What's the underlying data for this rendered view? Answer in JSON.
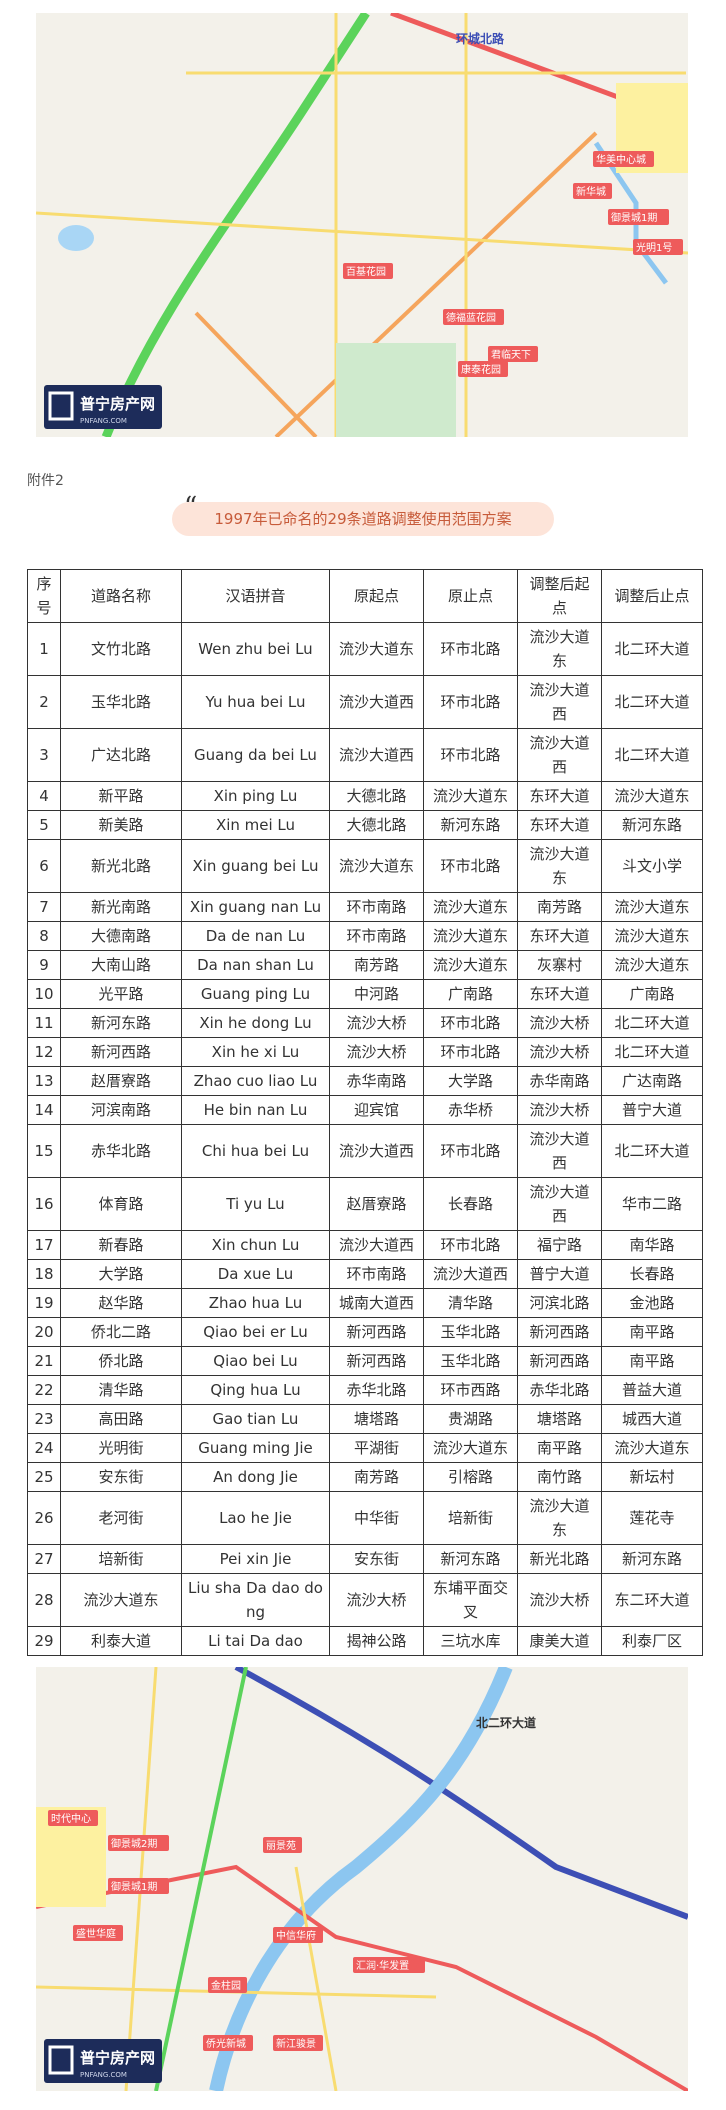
{
  "maps": [
    {
      "logo": "普宁房产网",
      "logo_sub": "PNFANG.COM",
      "labels": [
        "环城北路",
        "华美中心城",
        "新华城",
        "御景城1期",
        "光明1号",
        "百基花园",
        "德福蓝花园",
        "君临天下",
        "康泰花园"
      ]
    },
    {
      "logo": "普宁房产网",
      "logo_sub": "PNFANG.COM",
      "labels": [
        "北二环大道",
        "时代中心",
        "御景城2期",
        "御景城1期",
        "盛世华庭",
        "中信华府",
        "汇润·华发置",
        "金柱园",
        "侨光新城",
        "新江骏景",
        "丽景苑"
      ]
    }
  ],
  "attachment": "附件2",
  "title": "1997年已命名的29条道路调整使用范围方案",
  "table": {
    "header": [
      "序号",
      "道路名称",
      "汉语拼音",
      "原起点",
      "原止点",
      "调整后起点",
      "调整后止点"
    ],
    "rows": [
      [
        "1",
        "文竹北路",
        "Wen zhu bei Lu",
        "流沙大道东",
        "环市北路",
        "流沙大道东",
        "北二环大道"
      ],
      [
        "2",
        "玉华北路",
        "Yu hua bei Lu",
        "流沙大道西",
        "环市北路",
        "流沙大道西",
        "北二环大道"
      ],
      [
        "3",
        "广达北路",
        "Guang da bei Lu",
        "流沙大道西",
        "环市北路",
        "流沙大道西",
        "北二环大道"
      ],
      [
        "4",
        "新平路",
        "Xin ping Lu",
        "大德北路",
        "流沙大道东",
        "东环大道",
        "流沙大道东"
      ],
      [
        "5",
        "新美路",
        "Xin mei Lu",
        "大德北路",
        "新河东路",
        "东环大道",
        "新河东路"
      ],
      [
        "6",
        "新光北路",
        "Xin guang bei Lu",
        "流沙大道东",
        "环市北路",
        "流沙大道东",
        "斗文小学"
      ],
      [
        "7",
        "新光南路",
        "Xin guang nan Lu",
        "环市南路",
        "流沙大道东",
        "南芳路",
        "流沙大道东"
      ],
      [
        "8",
        "大德南路",
        "Da de nan Lu",
        "环市南路",
        "流沙大道东",
        "东环大道",
        "流沙大道东"
      ],
      [
        "9",
        "大南山路",
        "Da nan shan Lu",
        "南芳路",
        "流沙大道东",
        "灰寨村",
        "流沙大道东"
      ],
      [
        "10",
        "光平路",
        "Guang ping Lu",
        "中河路",
        "广南路",
        "东环大道",
        "广南路"
      ],
      [
        "11",
        "新河东路",
        "Xin he dong Lu",
        "流沙大桥",
        "环市北路",
        "流沙大桥",
        "北二环大道"
      ],
      [
        "12",
        "新河西路",
        "Xin he xi Lu",
        "流沙大桥",
        "环市北路",
        "流沙大桥",
        "北二环大道"
      ],
      [
        "13",
        "赵厝寮路",
        "Zhao cuo liao Lu",
        "赤华南路",
        "大学路",
        "赤华南路",
        "广达南路"
      ],
      [
        "14",
        "河滨南路",
        "He bin nan Lu",
        "迎宾馆",
        "赤华桥",
        "流沙大桥",
        "普宁大道"
      ],
      [
        "15",
        "赤华北路",
        "Chi hua bei Lu",
        "流沙大道西",
        "环市北路",
        "流沙大道西",
        "北二环大道"
      ],
      [
        "16",
        "体育路",
        "Ti yu Lu",
        "赵厝寮路",
        "长春路",
        "流沙大道西",
        "华市二路"
      ],
      [
        "17",
        "新春路",
        "Xin chun Lu",
        "流沙大道西",
        "环市北路",
        "福宁路",
        "南华路"
      ],
      [
        "18",
        "大学路",
        "Da xue Lu",
        "环市南路",
        "流沙大道西",
        "普宁大道",
        "长春路"
      ],
      [
        "19",
        "赵华路",
        "Zhao hua Lu",
        "城南大道西",
        "清华路",
        "河滨北路",
        "金池路"
      ],
      [
        "20",
        "侨北二路",
        "Qiao bei er Lu",
        "新河西路",
        "玉华北路",
        "新河西路",
        "南平路"
      ],
      [
        "21",
        "侨北路",
        "Qiao bei Lu",
        "新河西路",
        "玉华北路",
        "新河西路",
        "南平路"
      ],
      [
        "22",
        "清华路",
        "Qing hua Lu",
        "赤华北路",
        "环市西路",
        "赤华北路",
        "普益大道"
      ],
      [
        "23",
        "高田路",
        "Gao tian Lu",
        "塘塔路",
        "贵湖路",
        "塘塔路",
        "城西大道"
      ],
      [
        "24",
        "光明街",
        "Guang ming Jie",
        "平湖街",
        "流沙大道东",
        "南平路",
        "流沙大道东"
      ],
      [
        "25",
        "安东街",
        "An dong Jie",
        "南芳路",
        "引榕路",
        "南竹路",
        "新坛村"
      ],
      [
        "26",
        "老河街",
        "Lao he Jie",
        "中华街",
        "培新街",
        "流沙大道东",
        "莲花寺"
      ],
      [
        "27",
        "培新街",
        "Pei xin Jie",
        "安东街",
        "新河东路",
        "新光北路",
        "新河东路"
      ],
      [
        "28",
        "流沙大道东",
        "Liu sha Da dao dong",
        "流沙大桥",
        "东埔平面交叉",
        "流沙大桥",
        "东二环大道"
      ],
      [
        "29",
        "利泰大道",
        "Li tai Da dao",
        "揭神公路",
        "三坑水库",
        "康美大道",
        "利泰厂区"
      ]
    ]
  }
}
